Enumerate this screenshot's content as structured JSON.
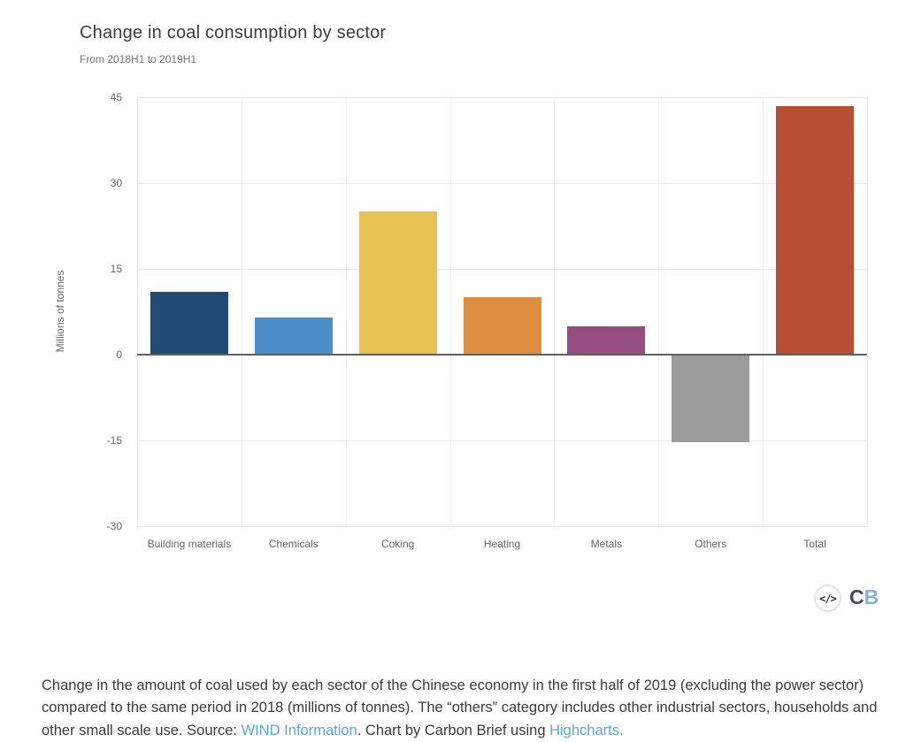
{
  "header": {
    "title": "Change in coal consumption by sector",
    "subtitle": "From 2018H1 to 2019H1"
  },
  "chart_data": {
    "type": "bar",
    "title": "Change in coal consumption by sector",
    "subtitle": "From 2018H1 to 2019H1",
    "xlabel": "",
    "ylabel": "Millions of tonnes",
    "categories": [
      "Building materials",
      "Chemicals",
      "Coking",
      "Heating",
      "Metals",
      "Others",
      "Total"
    ],
    "values": [
      11,
      6.5,
      25,
      10,
      5,
      -15.3,
      43.5
    ],
    "colors": [
      "#1f4a73",
      "#4a8fc7",
      "#e6c253",
      "#dd8e41",
      "#964e7e",
      "#9c9c9c",
      "#b84e31"
    ],
    "pattern": {
      "category": "Others",
      "style": "dotted"
    },
    "ylim": [
      -30,
      45
    ],
    "yticks": [
      45,
      30,
      15,
      0,
      -15,
      -30
    ],
    "grid": true,
    "legend_position": "none",
    "axis_line_color": "#616161",
    "gridline_color": "#e6e6e6"
  },
  "footer_logo": {
    "embed_glyph": "</>",
    "cb_c": "C",
    "cb_b": "B",
    "c_color": "#3d4d5d",
    "b_color": "#82b4da"
  },
  "caption": {
    "part1": "Change in the amount of coal used by each sector of the Chinese economy in the first half of 2019 (excluding the power sector) compared to the same period in 2018 (millions of tonnes). The “others” category includes other industrial sectors, households and other small scale use. Source: ",
    "link1": "WIND Information",
    "part2": ". Chart by Carbon Brief using ",
    "link2": "Highcharts."
  }
}
